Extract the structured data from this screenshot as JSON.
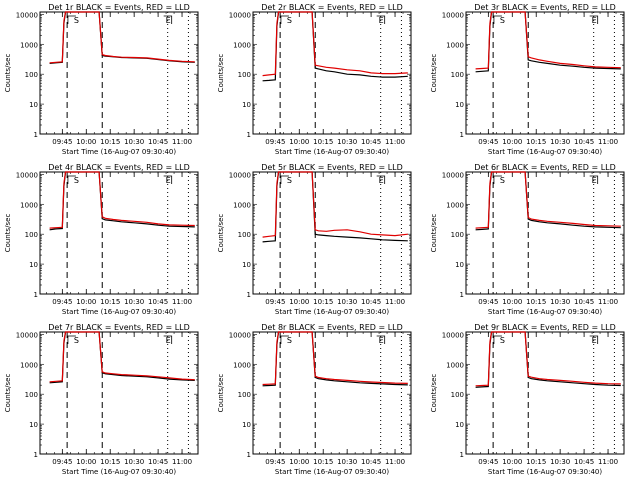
{
  "colors": {
    "events": "#000000",
    "lld": "#e00000",
    "background": "#ffffff",
    "axes": "#000000"
  },
  "chart_data": [
    {
      "type": "line",
      "title": "Det 1r BLACK = Events, RED = LLD",
      "xlabel": "Start Time (16-Aug-07 09:30:40)",
      "ylabel": "Counts/sec",
      "x_tick_labels": [
        "09:45",
        "10:00",
        "10:15",
        "10:30",
        "10:45",
        "11:00"
      ],
      "y_scale": "log",
      "ylim": [
        1,
        12000
      ],
      "y_tick_labels": [
        "1",
        "10",
        "100",
        "1000",
        "10000"
      ],
      "grid": false,
      "markers": {
        "S": "09:51",
        "E": "10:51",
        "dashed_lines": [
          "09:48",
          "10:10"
        ],
        "dotted_lines": [
          "10:51",
          "11:04"
        ]
      },
      "x": [
        "09:37",
        "09:41",
        "09:45",
        "09:46",
        "09:47",
        "09:49",
        "09:51",
        "09:52",
        "10:08",
        "10:10",
        "10:12",
        "10:17",
        "10:22",
        "10:30",
        "10:38",
        "10:45",
        "10:52",
        "11:00",
        "11:08"
      ],
      "series": [
        {
          "name": "Events",
          "color": "#000000",
          "values": [
            230,
            240,
            250,
            5000,
            12000,
            12000,
            12000,
            12000,
            12000,
            420,
            400,
            380,
            360,
            350,
            340,
            310,
            280,
            260,
            250
          ]
        },
        {
          "name": "LLD",
          "color": "#e00000",
          "values": [
            240,
            250,
            260,
            6000,
            12000,
            12000,
            12000,
            12000,
            12000,
            450,
            420,
            390,
            370,
            360,
            350,
            320,
            290,
            270,
            260
          ]
        }
      ]
    },
    {
      "type": "line",
      "title": "Det 2r BLACK = Events, RED = LLD",
      "xlabel": "Start Time (16-Aug-07 09:30:40)",
      "ylabel": "Counts/sec",
      "x_tick_labels": [
        "09:45",
        "10:00",
        "10:15",
        "10:30",
        "10:45",
        "11:00"
      ],
      "y_scale": "log",
      "ylim": [
        1,
        12000
      ],
      "y_tick_labels": [
        "1",
        "10",
        "100",
        "1000",
        "10000"
      ],
      "grid": false,
      "markers": {
        "S": "09:51",
        "E": "10:51",
        "dashed_lines": [
          "09:48",
          "10:10"
        ],
        "dotted_lines": [
          "10:51",
          "11:04"
        ]
      },
      "x": [
        "09:37",
        "09:41",
        "09:45",
        "09:46",
        "09:47",
        "09:49",
        "09:51",
        "09:52",
        "10:08",
        "10:10",
        "10:12",
        "10:17",
        "10:22",
        "10:30",
        "10:38",
        "10:45",
        "10:52",
        "11:00",
        "11:08"
      ],
      "series": [
        {
          "name": "Events",
          "color": "#000000",
          "values": [
            60,
            62,
            65,
            4000,
            12000,
            12000,
            12000,
            12000,
            12000,
            160,
            150,
            130,
            120,
            100,
            95,
            85,
            80,
            80,
            85
          ]
        },
        {
          "name": "LLD",
          "color": "#e00000",
          "values": [
            90,
            95,
            100,
            5000,
            12000,
            12000,
            12000,
            12000,
            12000,
            200,
            190,
            170,
            160,
            140,
            130,
            110,
            105,
            105,
            110
          ]
        }
      ]
    },
    {
      "type": "line",
      "title": "Det 3r BLACK = Events, RED = LLD",
      "xlabel": "Start Time (16-Aug-07 09:30:40)",
      "ylabel": "Counts/sec",
      "x_tick_labels": [
        "09:45",
        "10:00",
        "10:15",
        "10:30",
        "10:45",
        "11:00"
      ],
      "y_scale": "log",
      "ylim": [
        1,
        12000
      ],
      "y_tick_labels": [
        "1",
        "10",
        "100",
        "1000",
        "10000"
      ],
      "grid": false,
      "markers": {
        "S": "09:51",
        "E": "10:51",
        "dashed_lines": [
          "09:48",
          "10:10"
        ],
        "dotted_lines": [
          "10:51",
          "11:04"
        ]
      },
      "x": [
        "09:37",
        "09:41",
        "09:45",
        "09:46",
        "09:47",
        "09:49",
        "09:51",
        "09:52",
        "10:08",
        "10:10",
        "10:12",
        "10:17",
        "10:22",
        "10:30",
        "10:38",
        "10:45",
        "10:52",
        "11:00",
        "11:08"
      ],
      "series": [
        {
          "name": "Events",
          "color": "#000000",
          "values": [
            120,
            125,
            130,
            4000,
            12000,
            12000,
            12000,
            12000,
            12000,
            300,
            280,
            250,
            230,
            200,
            185,
            170,
            160,
            155,
            150
          ]
        },
        {
          "name": "LLD",
          "color": "#e00000",
          "values": [
            150,
            155,
            160,
            5000,
            12000,
            12000,
            12000,
            12000,
            12000,
            380,
            350,
            300,
            270,
            230,
            210,
            190,
            175,
            170,
            165
          ]
        }
      ]
    },
    {
      "type": "line",
      "title": "Det 4r BLACK = Events, RED = LLD",
      "xlabel": "Start Time (16-Aug-07 09:30:40)",
      "ylabel": "Counts/sec",
      "x_tick_labels": [
        "09:45",
        "10:00",
        "10:15",
        "10:30",
        "10:45",
        "11:00"
      ],
      "y_scale": "log",
      "ylim": [
        1,
        12000
      ],
      "y_tick_labels": [
        "1",
        "10",
        "100",
        "1000",
        "10000"
      ],
      "grid": false,
      "markers": {
        "S": "09:51",
        "E": "10:51",
        "dashed_lines": [
          "09:48",
          "10:10"
        ],
        "dotted_lines": [
          "10:51",
          "11:04"
        ]
      },
      "x": [
        "09:37",
        "09:41",
        "09:45",
        "09:46",
        "09:47",
        "09:49",
        "09:51",
        "09:52",
        "10:08",
        "10:10",
        "10:12",
        "10:17",
        "10:22",
        "10:30",
        "10:38",
        "10:45",
        "10:52",
        "11:00",
        "11:08"
      ],
      "series": [
        {
          "name": "Events",
          "color": "#000000",
          "values": [
            140,
            150,
            155,
            4000,
            12000,
            12000,
            12000,
            12000,
            12000,
            330,
            300,
            280,
            260,
            240,
            220,
            200,
            185,
            180,
            175
          ]
        },
        {
          "name": "LLD",
          "color": "#e00000",
          "values": [
            160,
            165,
            170,
            5000,
            12000,
            12000,
            12000,
            12000,
            12000,
            380,
            340,
            310,
            290,
            270,
            250,
            220,
            205,
            200,
            195
          ]
        }
      ]
    },
    {
      "type": "line",
      "title": "Det 5r BLACK = Events, RED = LLD",
      "xlabel": "Start Time (16-Aug-07 09:30:40)",
      "ylabel": "Counts/sec",
      "x_tick_labels": [
        "09:45",
        "10:00",
        "10:15",
        "10:30",
        "10:45",
        "11:00"
      ],
      "y_scale": "log",
      "ylim": [
        1,
        12000
      ],
      "y_tick_labels": [
        "1",
        "10",
        "100",
        "1000",
        "10000"
      ],
      "grid": false,
      "markers": {
        "S": "09:51",
        "E": "10:51",
        "dashed_lines": [
          "09:48",
          "10:10"
        ],
        "dotted_lines": [
          "10:51",
          "11:04"
        ]
      },
      "x": [
        "09:37",
        "09:41",
        "09:45",
        "09:46",
        "09:47",
        "09:49",
        "09:51",
        "09:52",
        "10:08",
        "10:10",
        "10:12",
        "10:17",
        "10:22",
        "10:30",
        "10:38",
        "10:45",
        "10:52",
        "11:00",
        "11:08"
      ],
      "series": [
        {
          "name": "Events",
          "color": "#000000",
          "values": [
            55,
            58,
            60,
            4000,
            12000,
            12000,
            12000,
            12000,
            12000,
            100,
            95,
            90,
            85,
            80,
            75,
            70,
            65,
            62,
            60
          ]
        },
        {
          "name": "LLD",
          "color": "#e00000",
          "values": [
            80,
            85,
            90,
            5000,
            12000,
            12000,
            12000,
            12000,
            12000,
            140,
            130,
            125,
            135,
            140,
            120,
            100,
            95,
            90,
            100
          ]
        }
      ]
    },
    {
      "type": "line",
      "title": "Det 6r BLACK = Events, RED = LLD",
      "xlabel": "Start Time (16-Aug-07 09:30:40)",
      "ylabel": "Counts/sec",
      "x_tick_labels": [
        "09:45",
        "10:00",
        "10:15",
        "10:30",
        "10:45",
        "11:00"
      ],
      "y_scale": "log",
      "ylim": [
        1,
        12000
      ],
      "y_tick_labels": [
        "1",
        "10",
        "100",
        "1000",
        "10000"
      ],
      "grid": false,
      "markers": {
        "S": "09:51",
        "E": "10:51",
        "dashed_lines": [
          "09:48",
          "10:10"
        ],
        "dotted_lines": [
          "10:51",
          "11:04"
        ]
      },
      "x": [
        "09:37",
        "09:41",
        "09:45",
        "09:46",
        "09:47",
        "09:49",
        "09:51",
        "09:52",
        "10:08",
        "10:10",
        "10:12",
        "10:17",
        "10:22",
        "10:30",
        "10:38",
        "10:45",
        "10:52",
        "11:00",
        "11:08"
      ],
      "series": [
        {
          "name": "Events",
          "color": "#000000",
          "values": [
            140,
            145,
            150,
            4000,
            12000,
            12000,
            12000,
            12000,
            12000,
            320,
            290,
            260,
            240,
            220,
            200,
            185,
            175,
            170,
            165
          ]
        },
        {
          "name": "LLD",
          "color": "#e00000",
          "values": [
            160,
            165,
            170,
            5000,
            12000,
            12000,
            12000,
            12000,
            12000,
            360,
            320,
            290,
            270,
            250,
            230,
            210,
            195,
            190,
            185
          ]
        }
      ]
    },
    {
      "type": "line",
      "title": "Det 7r BLACK = Events, RED = LLD",
      "xlabel": "Start Time (16-Aug-07 09:30:40)",
      "ylabel": "Counts/sec",
      "x_tick_labels": [
        "09:45",
        "10:00",
        "10:15",
        "10:30",
        "10:45",
        "11:00"
      ],
      "y_scale": "log",
      "ylim": [
        1,
        12000
      ],
      "y_tick_labels": [
        "1",
        "10",
        "100",
        "1000",
        "10000"
      ],
      "grid": false,
      "markers": {
        "S": "09:51",
        "E": "10:51",
        "dashed_lines": [
          "09:48",
          "10:10"
        ],
        "dotted_lines": [
          "10:51",
          "11:04"
        ]
      },
      "x": [
        "09:37",
        "09:41",
        "09:45",
        "09:46",
        "09:47",
        "09:49",
        "09:51",
        "09:52",
        "10:08",
        "10:10",
        "10:12",
        "10:17",
        "10:22",
        "10:30",
        "10:38",
        "10:45",
        "10:52",
        "11:00",
        "11:08"
      ],
      "series": [
        {
          "name": "Events",
          "color": "#000000",
          "values": [
            240,
            250,
            260,
            5000,
            12000,
            12000,
            12000,
            12000,
            12000,
            520,
            480,
            450,
            420,
            400,
            380,
            350,
            320,
            300,
            290
          ]
        },
        {
          "name": "LLD",
          "color": "#e00000",
          "values": [
            260,
            270,
            280,
            6000,
            12000,
            12000,
            12000,
            12000,
            12000,
            560,
            510,
            480,
            450,
            430,
            410,
            380,
            350,
            320,
            305
          ]
        }
      ]
    },
    {
      "type": "line",
      "title": "Det 8r BLACK = Events, RED = LLD",
      "xlabel": "Start Time (16-Aug-07 09:30:40)",
      "ylabel": "Counts/sec",
      "x_tick_labels": [
        "09:45",
        "10:00",
        "10:15",
        "10:30",
        "10:45",
        "11:00"
      ],
      "y_scale": "log",
      "ylim": [
        1,
        12000
      ],
      "y_tick_labels": [
        "1",
        "10",
        "100",
        "1000",
        "10000"
      ],
      "grid": false,
      "markers": {
        "S": "09:51",
        "E": "10:51",
        "dashed_lines": [
          "09:48",
          "10:10"
        ],
        "dotted_lines": [
          "10:51",
          "11:04"
        ]
      },
      "x": [
        "09:37",
        "09:41",
        "09:45",
        "09:46",
        "09:47",
        "09:49",
        "09:51",
        "09:52",
        "10:08",
        "10:10",
        "10:12",
        "10:17",
        "10:22",
        "10:30",
        "10:38",
        "10:45",
        "10:52",
        "11:00",
        "11:08"
      ],
      "series": [
        {
          "name": "Events",
          "color": "#000000",
          "values": [
            190,
            195,
            200,
            4500,
            12000,
            12000,
            12000,
            12000,
            12000,
            360,
            330,
            300,
            280,
            260,
            240,
            230,
            220,
            210,
            205
          ]
        },
        {
          "name": "LLD",
          "color": "#e00000",
          "values": [
            210,
            215,
            220,
            5500,
            12000,
            12000,
            12000,
            12000,
            12000,
            400,
            360,
            330,
            310,
            290,
            270,
            255,
            245,
            235,
            230
          ]
        }
      ]
    },
    {
      "type": "line",
      "title": "Det 9r BLACK = Events, RED = LLD",
      "xlabel": "Start Time (16-Aug-07 09:30:40)",
      "ylabel": "Counts/sec",
      "x_tick_labels": [
        "09:45",
        "10:00",
        "10:15",
        "10:30",
        "10:45",
        "11:00"
      ],
      "y_scale": "log",
      "ylim": [
        1,
        12000
      ],
      "y_tick_labels": [
        "1",
        "10",
        "100",
        "1000",
        "10000"
      ],
      "grid": false,
      "markers": {
        "S": "09:51",
        "E": "10:51",
        "dashed_lines": [
          "09:48",
          "10:10"
        ],
        "dotted_lines": [
          "10:51",
          "11:04"
        ]
      },
      "x": [
        "09:37",
        "09:41",
        "09:45",
        "09:46",
        "09:47",
        "09:49",
        "09:51",
        "09:52",
        "10:08",
        "10:10",
        "10:12",
        "10:17",
        "10:22",
        "10:30",
        "10:38",
        "10:45",
        "10:52",
        "11:00",
        "11:08"
      ],
      "series": [
        {
          "name": "Events",
          "color": "#000000",
          "values": [
            170,
            175,
            180,
            4500,
            12000,
            12000,
            12000,
            12000,
            12000,
            360,
            330,
            300,
            280,
            260,
            240,
            225,
            210,
            200,
            195
          ]
        },
        {
          "name": "LLD",
          "color": "#e00000",
          "values": [
            190,
            195,
            200,
            5500,
            12000,
            12000,
            12000,
            12000,
            12000,
            400,
            370,
            330,
            310,
            290,
            270,
            250,
            235,
            225,
            220
          ]
        }
      ]
    }
  ]
}
